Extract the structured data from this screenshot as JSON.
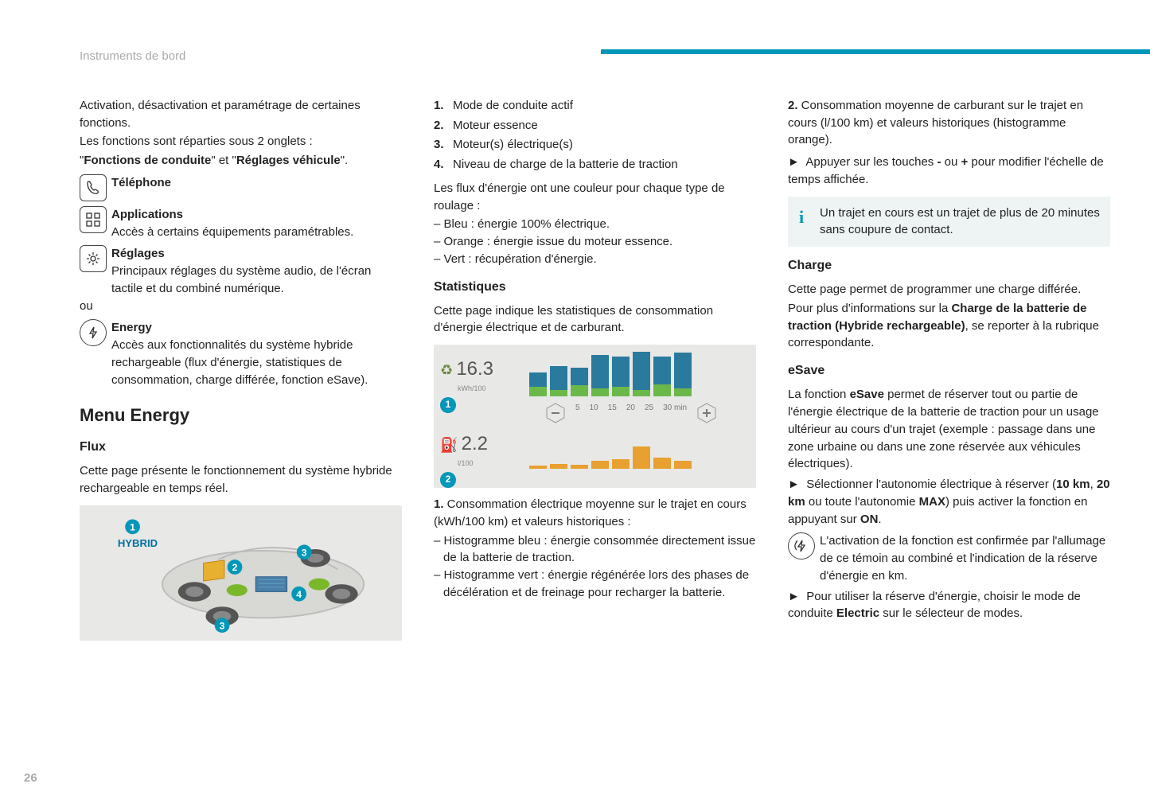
{
  "header": "Instruments de bord",
  "page_number": "26",
  "accent_color": "#0097b8",
  "col1": {
    "intro1": "Activation, désactivation et paramétrage de certaines fonctions.",
    "intro2": "Les fonctions sont réparties sous 2 onglets :",
    "intro3_pre": "\"",
    "intro3_b1": "Fonctions de conduite",
    "intro3_mid": "\" et \"",
    "intro3_b2": "Réglages véhicule",
    "intro3_post": "\".",
    "telephone_title": "Téléphone",
    "apps_title": "Applications",
    "apps_desc": "Accès à certains équipements paramétrables.",
    "reglages_title": "Réglages",
    "reglages_desc": "Principaux réglages du système audio, de l'écran tactile et du combiné numérique.",
    "ou": "ou",
    "energy_title": "Energy",
    "energy_desc": "Accès aux fonctionnalités du système hybride rechargeable (flux d'énergie, statistiques de consommation, charge différée, fonction eSave).",
    "menu_heading": "Menu Energy",
    "flux_heading": "Flux",
    "flux_desc": "Cette page présente le fonctionnement du système hybride rechargeable en temps réel.",
    "hybrid_label": "HYBRID"
  },
  "col2": {
    "list": [
      "Mode de conduite actif",
      "Moteur essence",
      "Moteur(s) électrique(s)",
      "Niveau de charge de la batterie de traction"
    ],
    "flux_colors_intro": "Les flux d'énergie ont une couleur pour chaque type de roulage :",
    "flux_colors": [
      "Bleu : énergie 100% électrique.",
      "Orange : énergie issue du moteur essence.",
      "Vert : récupération d'énergie."
    ],
    "stats_heading": "Statistiques",
    "stats_desc": "Cette page indique les statistiques de consommation d'énergie électrique et de carburant.",
    "chart": {
      "val1": "16.3",
      "unit1": "kWh/100",
      "val2": "2.2",
      "unit2": "l/100",
      "axis": [
        "5",
        "10",
        "15",
        "20",
        "25",
        "30 min"
      ],
      "bars_top": [
        {
          "blue": 18,
          "green": 12
        },
        {
          "blue": 30,
          "green": 8
        },
        {
          "blue": 22,
          "green": 14
        },
        {
          "blue": 42,
          "green": 10
        },
        {
          "blue": 38,
          "green": 12
        },
        {
          "blue": 48,
          "green": 8
        },
        {
          "blue": 35,
          "green": 15
        },
        {
          "blue": 45,
          "green": 10
        }
      ],
      "bars_bot": [
        4,
        6,
        5,
        10,
        12,
        28,
        14,
        10
      ],
      "color_blue": "#2a7a9e",
      "color_green": "#6bb84a",
      "color_orange": "#e8a030"
    },
    "item1_pre": "1.",
    "item1": " Consommation électrique moyenne sur le trajet en cours (kWh/100 km) et valeurs historiques :",
    "hist_items": [
      "Histogramme bleu : énergie consommée directement issue de la batterie de traction.",
      "Histogramme vert : énergie régénérée lors des phases de décélération et de freinage pour recharger la batterie."
    ]
  },
  "col3": {
    "item2_pre": "2.",
    "item2": " Consommation moyenne de carburant sur le trajet en cours (l/100 km) et valeurs historiques (histogramme orange).",
    "arrow1_pre": "Appuyer sur les touches ",
    "arrow1_b1": "-",
    "arrow1_mid": " ou ",
    "arrow1_b2": "+",
    "arrow1_post": " pour modifier l'échelle de temps affichée.",
    "info": "Un trajet en cours est un trajet de plus de 20 minutes sans coupure de contact.",
    "charge_heading": "Charge",
    "charge_p1": "Cette page permet de programmer une charge différée.",
    "charge_p2_pre": "Pour plus d'informations sur la ",
    "charge_p2_b": "Charge de la batterie de traction (Hybride rechargeable)",
    "charge_p2_post": ", se reporter à la rubrique correspondante.",
    "esave_heading": "eSave",
    "esave_p1_pre": "La fonction ",
    "esave_p1_b": "eSave",
    "esave_p1_post": " permet de réserver tout ou partie de l'énergie électrique de la batterie de traction pour un usage ultérieur au cours d'un trajet (exemple : passage dans une zone urbaine ou dans une zone réservée aux véhicules électriques).",
    "esave_a1_pre": "Sélectionner l'autonomie électrique à réserver (",
    "esave_a1_b1": "10 km",
    "esave_a1_m1": ", ",
    "esave_a1_b2": "20 km",
    "esave_a1_m2": " ou toute l'autonomie ",
    "esave_a1_b3": "MAX",
    "esave_a1_m3": ") puis activer la fonction en appuyant sur ",
    "esave_a1_b4": "ON",
    "esave_a1_post": ".",
    "esave_icon_desc": "L'activation de la fonction est confirmée par l'allumage de ce témoin au combiné et l'indication de la réserve d'énergie en km.",
    "esave_a2_pre": "Pour utiliser la réserve d'énergie, choisir le mode de conduite ",
    "esave_a2_b": "Electric",
    "esave_a2_post": " sur le sélecteur de modes."
  }
}
